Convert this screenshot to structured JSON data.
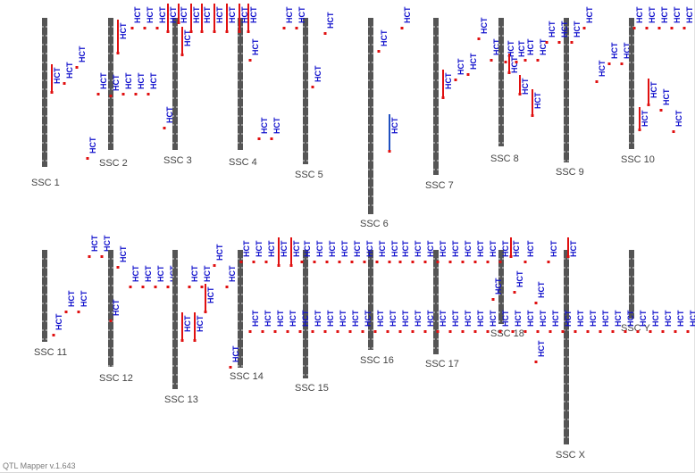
{
  "app": {
    "version": "QTL Mapper v.1.643"
  },
  "colors": {
    "chromosome": "#555555",
    "qtl_red": "#e01010",
    "qtl_blue": "#2050c0",
    "label_blue": "#1010cc",
    "tick": "#ffffff"
  },
  "trait": "HCT",
  "chromosomes": [
    {
      "id": "ssc1",
      "label": "SSC 1"
    },
    {
      "id": "ssc2",
      "label": "SSC 2"
    },
    {
      "id": "ssc3",
      "label": "SSC 3"
    },
    {
      "id": "ssc4",
      "label": "SSC 4"
    },
    {
      "id": "ssc5",
      "label": "SSC 5"
    },
    {
      "id": "ssc6",
      "label": "SSC 6"
    },
    {
      "id": "ssc7",
      "label": "SSC 7"
    },
    {
      "id": "ssc8",
      "label": "SSC 8"
    },
    {
      "id": "ssc9",
      "label": "SSC 9"
    },
    {
      "id": "ssc10",
      "label": "SSC 10"
    },
    {
      "id": "ssc11",
      "label": "SSC 11"
    },
    {
      "id": "ssc12",
      "label": "SSC 12"
    },
    {
      "id": "ssc13",
      "label": "SSC 13"
    },
    {
      "id": "ssc14",
      "label": "SSC 14"
    },
    {
      "id": "ssc15",
      "label": "SSC 15"
    },
    {
      "id": "ssc16",
      "label": "SSC 16"
    },
    {
      "id": "ssc17",
      "label": "SSC 17"
    },
    {
      "id": "ssc18",
      "label": "SSC 18"
    },
    {
      "id": "sscx",
      "label": "SSC X"
    },
    {
      "id": "sscy",
      "label": "SSC Y"
    }
  ]
}
